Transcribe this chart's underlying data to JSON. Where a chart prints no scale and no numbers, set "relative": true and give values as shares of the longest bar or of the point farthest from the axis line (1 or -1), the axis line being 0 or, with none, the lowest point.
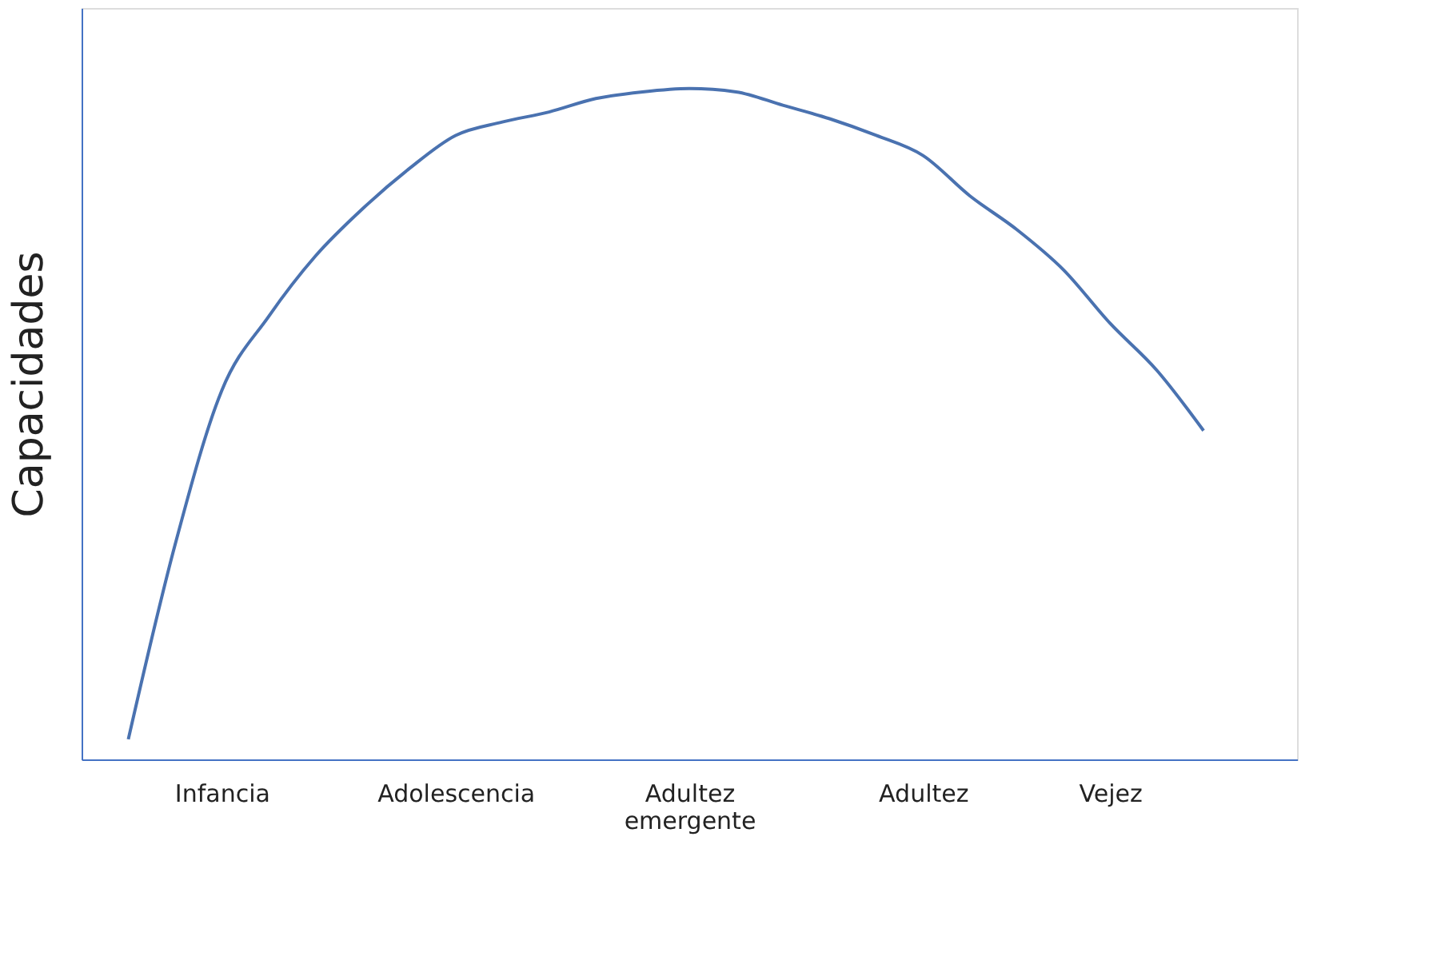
{
  "chart_data": {
    "type": "line",
    "ylabel": "Capacidades",
    "relative": true,
    "tick_labels": "x",
    "grid": false,
    "legend": false,
    "marker": "none",
    "line_style": "solid",
    "categories": [
      null,
      null,
      "Infancia",
      null,
      null,
      null,
      null,
      "Adolescencia",
      null,
      null,
      null,
      null,
      "Adultez emergente",
      null,
      null,
      null,
      null,
      "Adultez",
      null,
      null,
      null,
      "Vejez",
      null,
      null
    ],
    "series": [
      {
        "color": "#4a72b0",
        "values": [
          0.03,
          0.32,
          0.55,
          0.66,
          0.75,
          0.82,
          0.88,
          0.93,
          0.95,
          0.965,
          0.985,
          0.995,
          1.0,
          0.995,
          0.975,
          0.955,
          0.93,
          0.9,
          0.84,
          0.79,
          0.73,
          0.65,
          0.58,
          0.49
        ]
      }
    ]
  }
}
